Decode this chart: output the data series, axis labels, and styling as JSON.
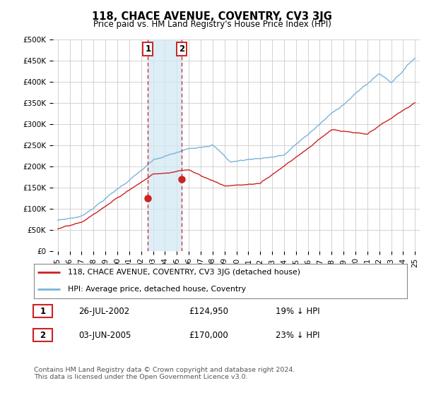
{
  "title": "118, CHACE AVENUE, COVENTRY, CV3 3JG",
  "subtitle": "Price paid vs. HM Land Registry's House Price Index (HPI)",
  "ylim": [
    0,
    500000
  ],
  "yticks": [
    0,
    50000,
    100000,
    150000,
    200000,
    250000,
    300000,
    350000,
    400000,
    450000,
    500000
  ],
  "ytick_labels": [
    "£0",
    "£50K",
    "£100K",
    "£150K",
    "£200K",
    "£250K",
    "£300K",
    "£350K",
    "£400K",
    "£450K",
    "£500K"
  ],
  "hpi_color": "#7ab4d8",
  "price_color": "#cc2222",
  "marker1_x": 2002.57,
  "marker1_price": 124950,
  "marker2_x": 2005.42,
  "marker2_price": 170000,
  "shade_color": "#d0e8f5",
  "legend_line1": "118, CHACE AVENUE, COVENTRY, CV3 3JG (detached house)",
  "legend_line2": "HPI: Average price, detached house, Coventry",
  "table_row1": [
    "1",
    "26-JUL-2002",
    "£124,950",
    "19% ↓ HPI"
  ],
  "table_row2": [
    "2",
    "03-JUN-2005",
    "£170,000",
    "23% ↓ HPI"
  ],
  "footnote": "Contains HM Land Registry data © Crown copyright and database right 2024.\nThis data is licensed under the Open Government Licence v3.0.",
  "bg": "#ffffff",
  "grid_color": "#cccccc"
}
